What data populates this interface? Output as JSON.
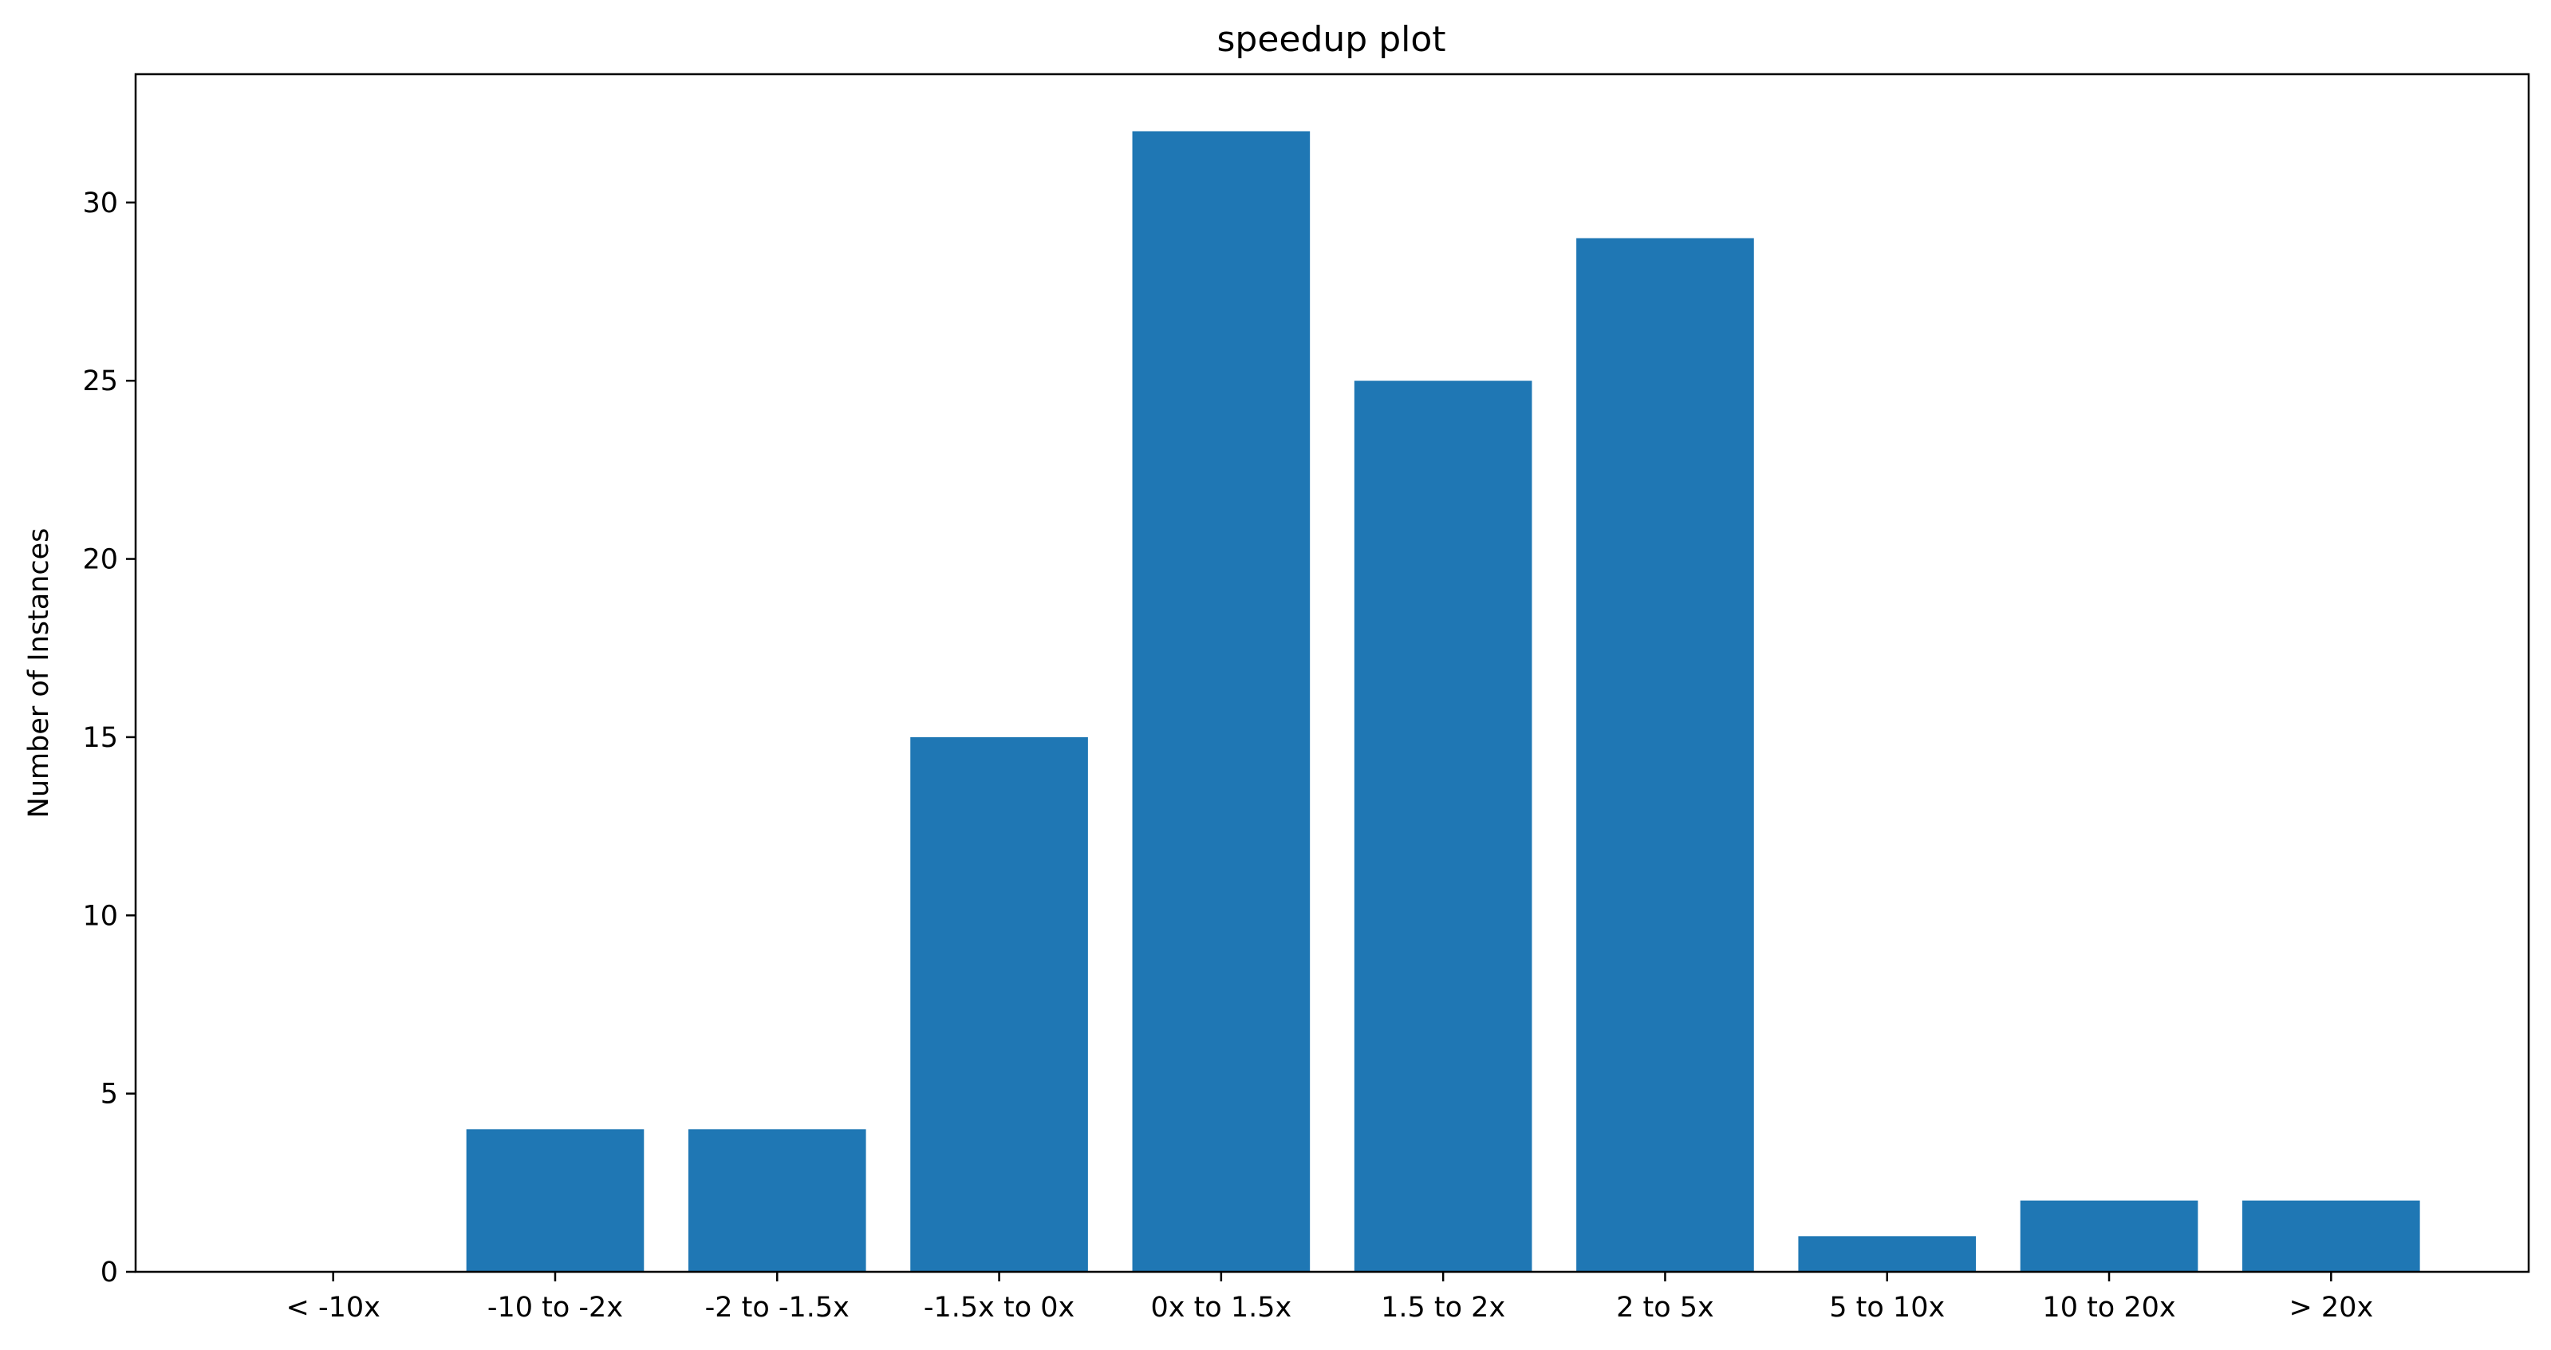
{
  "chart_data": {
    "type": "bar",
    "title": "speedup plot",
    "xlabel": "",
    "ylabel": "Number of Instances",
    "categories": [
      "< -10x",
      "-10 to -2x",
      "-2 to -1.5x",
      "-1.5x to 0x",
      "0x to 1.5x",
      "1.5 to 2x",
      "2 to 5x",
      "5 to 10x",
      "10 to 20x",
      "> 20x"
    ],
    "values": [
      0,
      4,
      4,
      15,
      32,
      25,
      29,
      1,
      2,
      2
    ],
    "ylim": [
      0,
      33.6
    ],
    "yticks": [
      0,
      5,
      10,
      15,
      20,
      25,
      30
    ],
    "grid": false,
    "bar_color": "#1f77b4"
  }
}
